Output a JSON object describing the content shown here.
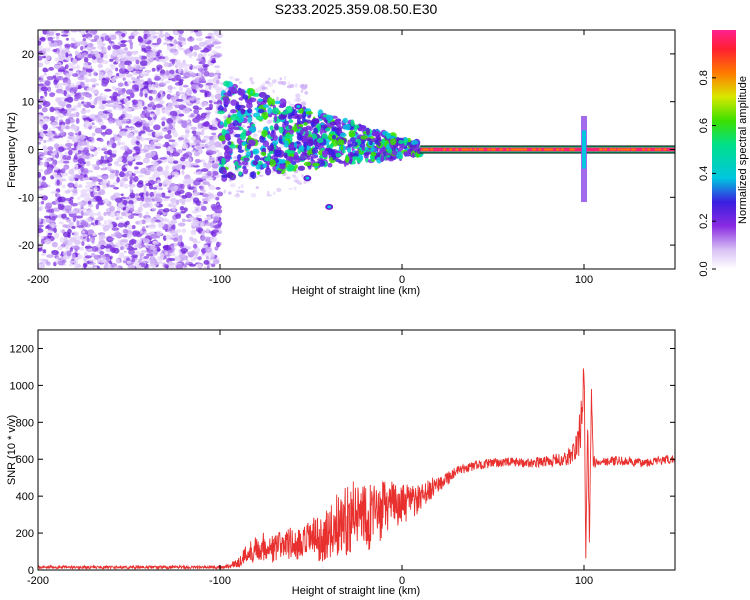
{
  "title": "S233.2025.359.08.50.E30",
  "chart_data": [
    {
      "type": "heatmap",
      "title": "S233.2025.359.08.50.E30",
      "xlabel": "Height of straight line (km)",
      "ylabel": "Frequency (Hz)",
      "xlim": [
        -200,
        150
      ],
      "ylim": [
        -25,
        25
      ],
      "xticks": [
        -200,
        -100,
        0,
        100
      ],
      "yticks": [
        -20,
        -10,
        0,
        10,
        20
      ],
      "xtick_labels": [
        "-200",
        "-100",
        "0",
        "100"
      ],
      "ytick_labels": [
        "-20",
        "-10",
        "0",
        "10",
        "20"
      ],
      "colorbar": {
        "label": "Normalized spectral amplitude",
        "range": [
          0,
          1
        ],
        "ticks": [
          0,
          0.2,
          0.4,
          0.6,
          0.8
        ],
        "tick_labels": [
          "0.0",
          "0.2",
          "0.4",
          "0.6",
          "0.8"
        ]
      },
      "features": {
        "noise_region_km": [
          -200,
          -100
        ],
        "carrier_start_km": 10,
        "carrier_frequency_hz": 0,
        "spike_km": 100,
        "isolated_blobs": [
          {
            "x_km": -52,
            "f_hz": -6
          },
          {
            "x_km": -40,
            "f_hz": -12
          },
          {
            "x_km": -57,
            "f_hz": 9
          }
        ]
      }
    },
    {
      "type": "line",
      "xlabel": "Height of straight line (km)",
      "ylabel": "SNR (10 * v/v)",
      "xlim": [
        -200,
        150
      ],
      "ylim": [
        0,
        1300
      ],
      "xticks": [
        -200,
        -100,
        0,
        100
      ],
      "yticks": [
        0,
        200,
        400,
        600,
        800,
        1000,
        1200
      ],
      "xtick_labels": [
        "-200",
        "-100",
        "0",
        "100"
      ],
      "ytick_labels": [
        "0",
        "200",
        "400",
        "600",
        "800",
        "1000",
        "1200"
      ],
      "series": [
        {
          "name": "SNR",
          "color": "#e8312f",
          "x": [
            -200,
            -160,
            -120,
            -100,
            -95,
            -90,
            -85,
            -80,
            -75,
            -70,
            -65,
            -60,
            -55,
            -50,
            -45,
            -40,
            -35,
            -30,
            -25,
            -20,
            -15,
            -10,
            -5,
            0,
            5,
            10,
            15,
            20,
            25,
            30,
            35,
            40,
            50,
            60,
            70,
            80,
            90,
            95,
            98,
            100,
            101,
            102,
            103,
            104,
            105,
            106,
            110,
            120,
            130,
            140,
            150
          ],
          "values": [
            15,
            15,
            15,
            15,
            20,
            40,
            90,
            120,
            130,
            110,
            150,
            140,
            120,
            180,
            160,
            200,
            250,
            280,
            300,
            330,
            260,
            340,
            360,
            350,
            370,
            380,
            430,
            470,
            500,
            530,
            550,
            565,
            580,
            585,
            580,
            590,
            600,
            640,
            750,
            1100,
            60,
            800,
            130,
            1000,
            600,
            580,
            590,
            590,
            580,
            590,
            600
          ],
          "noise_amplitude": [
            8,
            8,
            8,
            8,
            12,
            30,
            60,
            70,
            80,
            80,
            90,
            90,
            100,
            110,
            120,
            140,
            180,
            200,
            180,
            200,
            200,
            150,
            120,
            110,
            100,
            80,
            60,
            50,
            40,
            30,
            25,
            25,
            25,
            25,
            25,
            30,
            40,
            80,
            120,
            150,
            20,
            100,
            40,
            100,
            40,
            25,
            25,
            25,
            25,
            25,
            25
          ]
        }
      ]
    }
  ]
}
